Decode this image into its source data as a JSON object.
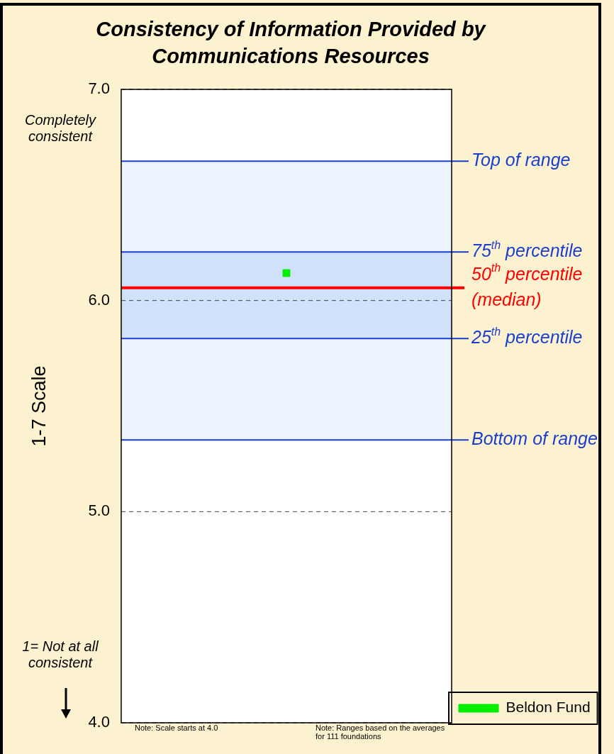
{
  "chart_data": {
    "type": "scatter",
    "title": "Consistency of Information Provided by Communications Resources",
    "ylabel": "1-7 Scale",
    "categories": [
      null
    ],
    "series": [
      {
        "name": "Beldon Fund",
        "color": "#00ee00",
        "values": [
          6.13
        ]
      }
    ],
    "ylim": [
      4.0,
      7.0
    ],
    "yticks": [
      {
        "value": 4,
        "label": "4.0"
      },
      {
        "value": 5,
        "label": "5.0"
      },
      {
        "value": 6,
        "label": "6.0"
      },
      {
        "value": 7,
        "label": "7.0"
      }
    ],
    "tick_labels": "y",
    "grid": "y",
    "legend": "bottom right",
    "bands": [
      {
        "axis": "y",
        "from": 5.34,
        "to": 6.66,
        "color": "#eef4fd"
      },
      {
        "axis": "y",
        "from": 5.82,
        "to": 6.23,
        "color": "#cfe2f9"
      }
    ],
    "ref_lines": [
      {
        "axis": "y",
        "value": 6.66,
        "label": "Top of range",
        "color": "#1a3fd0"
      },
      {
        "axis": "y",
        "value": 6.23,
        "label": "75$^{th}$ percentile",
        "color": "#1a3fd0"
      },
      {
        "axis": "y",
        "value": 6.06,
        "label": "50$^{th}$ percentile (median)",
        "color": "#ff0000"
      },
      {
        "axis": "y",
        "value": 5.82,
        "label": "25$^{th}$ percentile",
        "color": "#1a3fd0"
      },
      {
        "axis": "y",
        "value": 5.34,
        "label": "Bottom of range",
        "color": "#1a3fd0"
      }
    ],
    "annotations": [
      "Completely consistent",
      "1= Not at all consistent",
      "Note: Scale starts at 4.0",
      "Note: Ranges based on the averages for 111 foundations"
    ]
  }
}
